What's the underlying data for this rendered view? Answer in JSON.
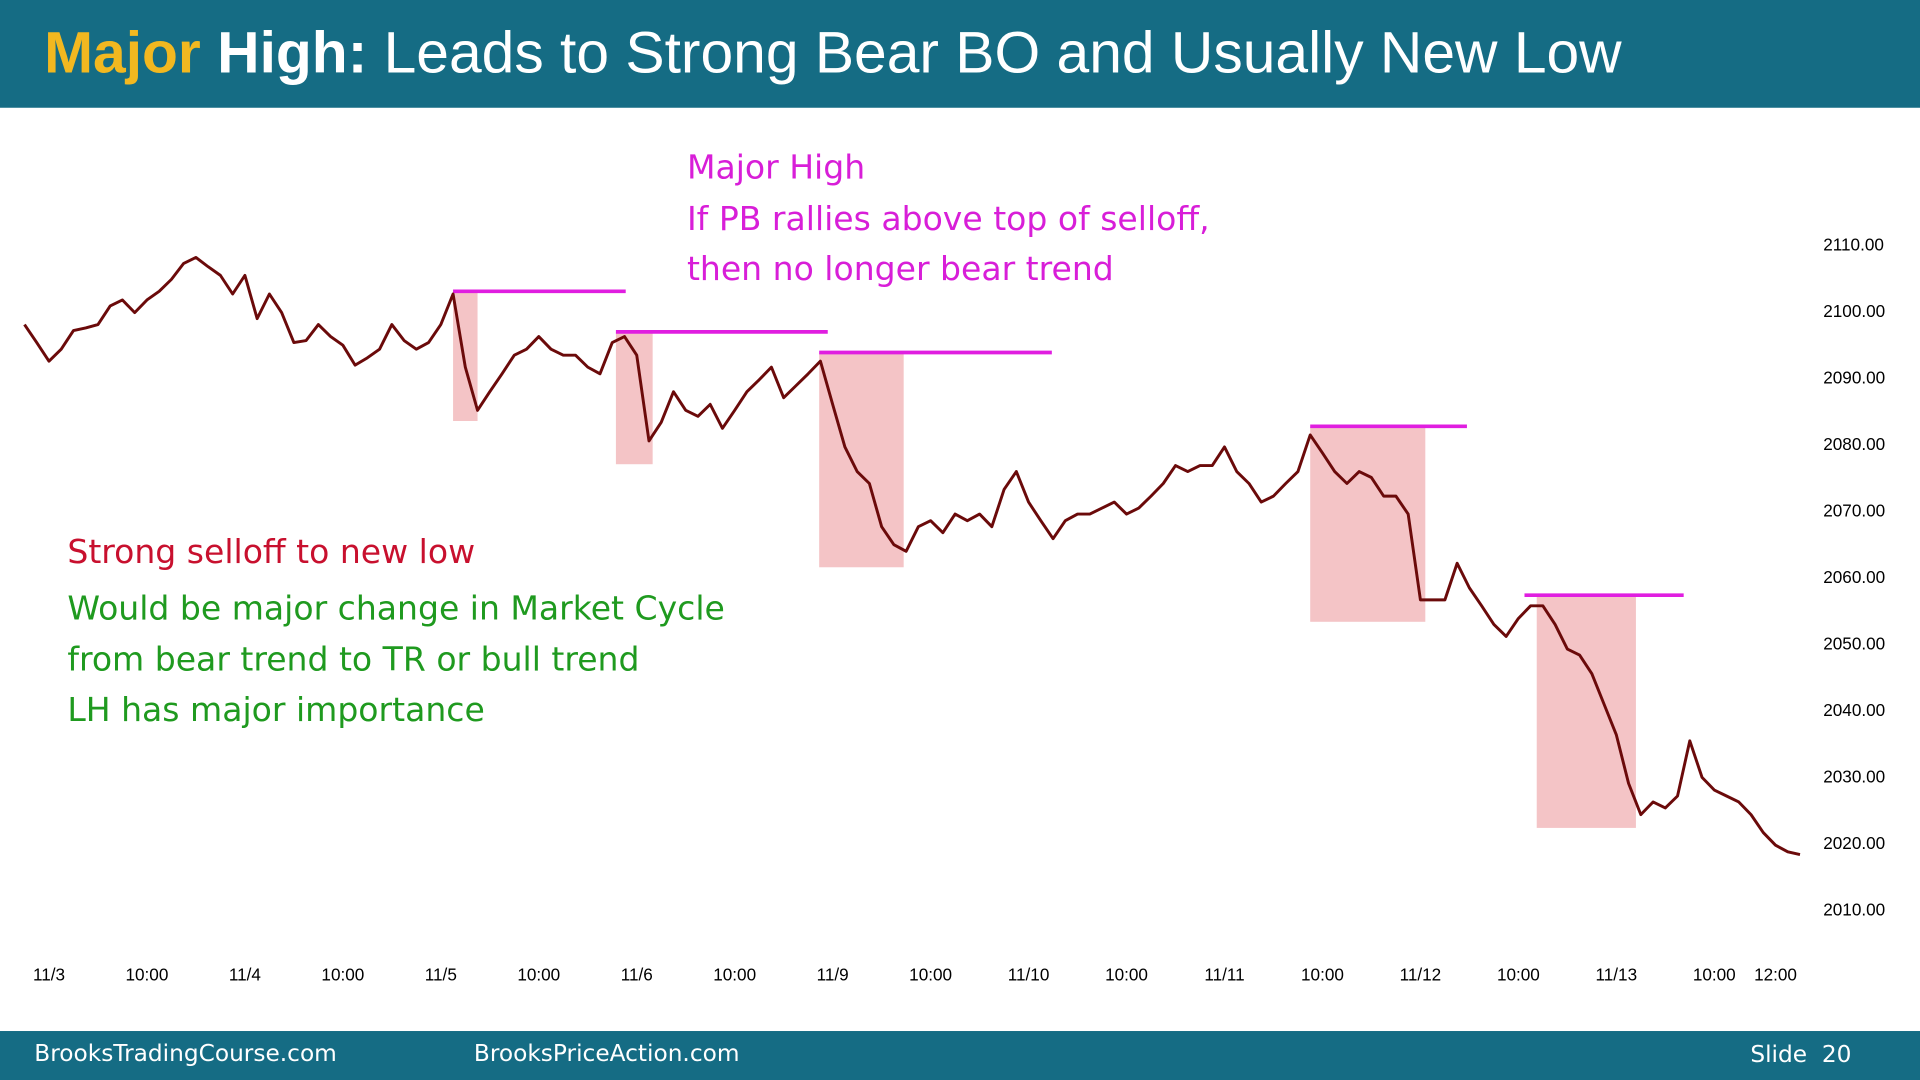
{
  "header": {
    "title_parts": [
      "Major",
      "High:",
      "Leads to Strong Bear BO and Usually New Low"
    ]
  },
  "chart_data": {
    "type": "line",
    "categories": [
      null,
      null,
      "11/3",
      null,
      null,
      null,
      null,
      null,
      null,
      null,
      "10:00",
      null,
      null,
      null,
      null,
      null,
      null,
      null,
      "11/4",
      null,
      null,
      null,
      null,
      null,
      null,
      null,
      "10:00",
      null,
      null,
      null,
      null,
      null,
      null,
      null,
      "11/5",
      null,
      null,
      null,
      null,
      null,
      null,
      null,
      "10:00",
      null,
      null,
      null,
      null,
      null,
      null,
      null,
      "11/6",
      null,
      null,
      null,
      null,
      null,
      null,
      null,
      "10:00",
      null,
      null,
      null,
      null,
      null,
      null,
      null,
      "11/9",
      null,
      null,
      null,
      null,
      null,
      null,
      null,
      "10:00",
      null,
      null,
      null,
      null,
      null,
      null,
      null,
      "11/10",
      null,
      null,
      null,
      null,
      null,
      null,
      null,
      "10:00",
      null,
      null,
      null,
      null,
      null,
      null,
      null,
      "11/11",
      null,
      null,
      null,
      null,
      null,
      null,
      null,
      "10:00",
      null,
      null,
      null,
      null,
      null,
      null,
      null,
      "11/12",
      null,
      null,
      null,
      null,
      null,
      null,
      null,
      "10:00",
      null,
      null,
      null,
      null,
      null,
      null,
      null,
      "11/13",
      null,
      null,
      null,
      null,
      null,
      null,
      null,
      "10:00",
      null,
      null,
      null,
      null,
      "12:00",
      null,
      null
    ],
    "values": [
      2098.2,
      2095.5,
      2092.7,
      2094.5,
      2097.3,
      2097.7,
      2098.2,
      2101,
      2101.9,
      2100,
      2101.9,
      2103.2,
      2105,
      2107.4,
      2108.3,
      2106.9,
      2105.6,
      2102.8,
      2105.6,
      2099.1,
      2102.8,
      2100,
      2095.5,
      2095.8,
      2098.2,
      2096.4,
      2095.1,
      2092.1,
      2093.2,
      2094.5,
      2098.2,
      2095.8,
      2094.5,
      2095.5,
      2098.2,
      2102.8,
      2091.8,
      2085.3,
      2088.1,
      2090.8,
      2093.6,
      2094.5,
      2096.4,
      2094.5,
      2093.6,
      2093.6,
      2091.8,
      2090.8,
      2095.5,
      2096.4,
      2093.6,
      2080.7,
      2083.5,
      2088.1,
      2085.3,
      2084.4,
      2086.2,
      2082.6,
      2085.3,
      2088.1,
      2089.9,
      2091.8,
      2087.2,
      2089,
      2090.8,
      2092.7,
      2086.2,
      2079.8,
      2076.1,
      2074.3,
      2067.8,
      2065.1,
      2064.1,
      2067.8,
      2068.7,
      2066.9,
      2069.7,
      2068.7,
      2069.7,
      2067.8,
      2073.4,
      2076.1,
      2071.5,
      2068.7,
      2066,
      2068.7,
      2069.7,
      2069.7,
      2070.6,
      2071.5,
      2069.7,
      2070.6,
      2072.4,
      2074.3,
      2077,
      2076.1,
      2077,
      2077,
      2079.8,
      2076.1,
      2074.3,
      2071.5,
      2072.4,
      2074.3,
      2076.1,
      2081.6,
      2078.9,
      2076.1,
      2074.3,
      2076.1,
      2075.2,
      2072.4,
      2072.4,
      2069.7,
      2056.8,
      2056.8,
      2056.8,
      2062.3,
      2058.6,
      2055.9,
      2053.1,
      2051.3,
      2054,
      2055.9,
      2055.9,
      2053.1,
      2049.4,
      2048.5,
      2045.7,
      2041.1,
      2036.5,
      2029.2,
      2024.5,
      2026.4,
      2025.5,
      2027.3,
      2035.6,
      2030.1,
      2028.2,
      2027.3,
      2026.4,
      2024.5,
      2021.8,
      2019.9,
      2018.9,
      2018.5
    ],
    "color": "#6b0a0a",
    "ylim": [
      2005,
      2130
    ],
    "yticks": [
      {
        "value": 2010,
        "label": "2010.00"
      },
      {
        "value": 2020,
        "label": "2020.00"
      },
      {
        "value": 2030,
        "label": "2030.00"
      },
      {
        "value": 2040,
        "label": "2040.00"
      },
      {
        "value": 2050,
        "label": "2050.00"
      },
      {
        "value": 2060,
        "label": "2060.00"
      },
      {
        "value": 2070,
        "label": "2070.00"
      },
      {
        "value": 2080,
        "label": "2080.00"
      },
      {
        "value": 2090,
        "label": "2090.00"
      },
      {
        "value": 2100,
        "label": "2100.00"
      },
      {
        "value": 2110,
        "label": "2110.00"
      }
    ],
    "zones": [
      {
        "x": [
          35,
          37
        ],
        "y": [
          2083.7,
          2103.2
        ]
      },
      {
        "x": [
          48.3,
          51.3
        ],
        "y": [
          2077.2,
          2097.1
        ]
      },
      {
        "x": [
          64.9,
          71.8
        ],
        "y": [
          2061.7,
          2094
        ]
      },
      {
        "x": [
          105,
          114.4
        ],
        "y": [
          2053.5,
          2082.9
        ]
      },
      {
        "x": [
          123.5,
          131.6
        ],
        "y": [
          2022.5,
          2057.5
        ]
      }
    ],
    "zone_color": "#f4c4c6",
    "levels": [
      {
        "x": [
          35,
          49.1
        ],
        "y": 2103.2
      },
      {
        "x": [
          48.3,
          65.6
        ],
        "y": 2097.1
      },
      {
        "x": [
          64.9,
          83.9
        ],
        "y": 2094
      },
      {
        "x": [
          105,
          117.8
        ],
        "y": 2082.9
      },
      {
        "x": [
          122.5,
          135.5
        ],
        "y": 2057.5
      }
    ],
    "level_color": "#e01ee0",
    "annotations": {
      "major_high": [
        "Major High",
        "If PB rallies above top of selloff,",
        "then no longer bear trend"
      ],
      "selloff": "Strong selloff to new low",
      "cycle": [
        "Would be major change in Market Cycle",
        "from bear trend to TR or bull trend",
        "LH has major importance"
      ]
    }
  },
  "footer": {
    "left": "BrooksTradingCourse.com",
    "center": "BrooksPriceAction.com",
    "slide": "Slide  20"
  }
}
